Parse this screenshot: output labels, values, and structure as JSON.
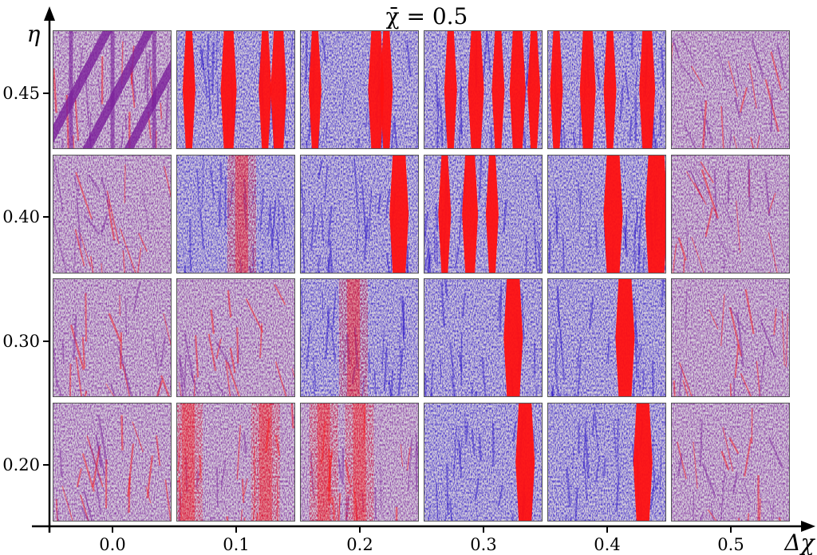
{
  "chart_data": {
    "type": "heatmap",
    "title": "χ̄ = 0.5",
    "xlabel": "Δχ",
    "ylabel": "η",
    "x_ticks": [
      "0.0",
      "0.1",
      "0.2",
      "0.3",
      "0.4",
      "0.5"
    ],
    "y_ticks": [
      "0.45",
      "0.40",
      "0.30",
      "0.20"
    ],
    "x_values": [
      0.0,
      0.1,
      0.2,
      0.3,
      0.4,
      0.5
    ],
    "y_values": [
      0.45,
      0.4,
      0.3,
      0.2
    ],
    "grid": false,
    "colors": {
      "blue": "#2a14c8",
      "red": "#ff1010",
      "purple": "#7a1e9a",
      "light": "#d9d3dc",
      "axis": "#000000"
    },
    "panels": [
      {
        "eta": 0.45,
        "dchi": 0.0,
        "style": "diagonal-bands",
        "tint": "purple",
        "bands": [
          0.1,
          0.45,
          0.8
        ]
      },
      {
        "eta": 0.45,
        "dchi": 0.1,
        "style": "stripes",
        "tint": "blue",
        "bands": [
          0.08,
          0.4,
          0.72,
          0.82
        ]
      },
      {
        "eta": 0.45,
        "dchi": 0.2,
        "style": "stripes",
        "tint": "blue",
        "bands": [
          0.1,
          0.6,
          0.7
        ]
      },
      {
        "eta": 0.45,
        "dchi": 0.3,
        "style": "stripes",
        "tint": "blue",
        "bands": [
          0.2,
          0.4,
          0.6,
          0.75,
          0.9
        ]
      },
      {
        "eta": 0.45,
        "dchi": 0.4,
        "style": "stripes",
        "tint": "blue",
        "bands": [
          0.05,
          0.3,
          0.5,
          0.8
        ]
      },
      {
        "eta": 0.45,
        "dchi": 0.5,
        "style": "noise",
        "tint": "purple",
        "bands": []
      },
      {
        "eta": 0.4,
        "dchi": 0.0,
        "style": "noise",
        "tint": "purple",
        "bands": []
      },
      {
        "eta": 0.4,
        "dchi": 0.1,
        "style": "diffuse-band",
        "tint": "blue",
        "bands": [
          0.55
        ]
      },
      {
        "eta": 0.4,
        "dchi": 0.2,
        "style": "stripes",
        "tint": "blue",
        "bands": [
          0.78
        ]
      },
      {
        "eta": 0.4,
        "dchi": 0.3,
        "style": "stripes",
        "tint": "blue",
        "bands": [
          0.15,
          0.35,
          0.55
        ]
      },
      {
        "eta": 0.4,
        "dchi": 0.4,
        "style": "stripes",
        "tint": "blue",
        "bands": [
          0.5,
          0.85
        ]
      },
      {
        "eta": 0.4,
        "dchi": 0.5,
        "style": "noise",
        "tint": "purple",
        "bands": []
      },
      {
        "eta": 0.3,
        "dchi": 0.0,
        "style": "noise",
        "tint": "purple",
        "bands": []
      },
      {
        "eta": 0.3,
        "dchi": 0.1,
        "style": "noise",
        "tint": "purple",
        "bands": []
      },
      {
        "eta": 0.3,
        "dchi": 0.2,
        "style": "diffuse-band",
        "tint": "blue",
        "bands": [
          0.45
        ]
      },
      {
        "eta": 0.3,
        "dchi": 0.3,
        "style": "stripes",
        "tint": "blue",
        "bands": [
          0.7
        ]
      },
      {
        "eta": 0.3,
        "dchi": 0.4,
        "style": "stripes",
        "tint": "blue",
        "bands": [
          0.6
        ]
      },
      {
        "eta": 0.3,
        "dchi": 0.5,
        "style": "noise",
        "tint": "purple",
        "bands": []
      },
      {
        "eta": 0.2,
        "dchi": 0.0,
        "style": "noise",
        "tint": "purple",
        "bands": []
      },
      {
        "eta": 0.2,
        "dchi": 0.1,
        "style": "diffuse-band",
        "tint": "purple",
        "bands": [
          0.1,
          0.75
        ]
      },
      {
        "eta": 0.2,
        "dchi": 0.2,
        "style": "diffuse-band",
        "tint": "purple",
        "bands": [
          0.2,
          0.5
        ]
      },
      {
        "eta": 0.2,
        "dchi": 0.3,
        "style": "stripes",
        "tint": "blue",
        "bands": [
          0.8
        ]
      },
      {
        "eta": 0.2,
        "dchi": 0.4,
        "style": "stripes",
        "tint": "blue",
        "bands": [
          0.75
        ]
      },
      {
        "eta": 0.2,
        "dchi": 0.5,
        "style": "noise",
        "tint": "purple",
        "bands": []
      }
    ]
  }
}
